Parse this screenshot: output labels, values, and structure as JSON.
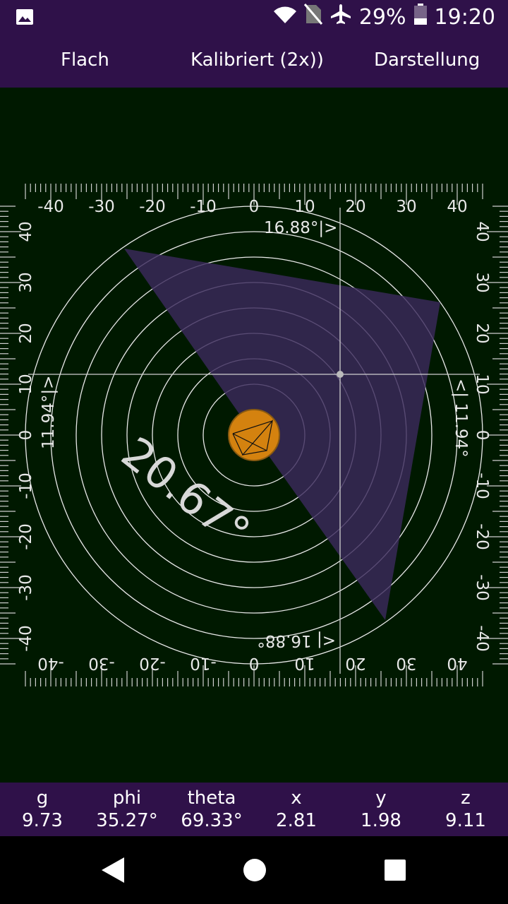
{
  "status": {
    "battery": "29%",
    "time": "19:20"
  },
  "menu": {
    "item1": "Flach",
    "item2": "Kalibriert (2x))",
    "item3": "Darstellung"
  },
  "scale_ticks": [
    "-40",
    "-30",
    "-20",
    "-10",
    "0",
    "10",
    "20",
    "30",
    "40"
  ],
  "overlay": {
    "top_readout": "16.88°|>",
    "bottom_readout": "<| 16.88°",
    "left_readout": "11.94°|>",
    "right_readout": "<| 11.94°",
    "angle": "20.67°"
  },
  "readouts": {
    "g": {
      "label": "g",
      "value": "9.73"
    },
    "phi": {
      "label": "phi",
      "value": "35.27°"
    },
    "theta": {
      "label": "theta",
      "value": "69.33°"
    },
    "x": {
      "label": "x",
      "value": "2.81"
    },
    "y": {
      "label": "y",
      "value": "1.98"
    },
    "z": {
      "label": "z",
      "value": "9.11"
    }
  },
  "colors": {
    "bar": "#2f1149",
    "background": "#001900",
    "wedge": "#3a2a5c",
    "bubble": "#d4820f"
  },
  "icons": {
    "status_left": "image-icon",
    "wifi": "wifi-icon",
    "no_sim": "no-sim-icon",
    "airplane": "airplane-icon",
    "battery": "battery-icon",
    "back": "back-icon",
    "home": "home-icon",
    "recents": "recents-icon"
  }
}
